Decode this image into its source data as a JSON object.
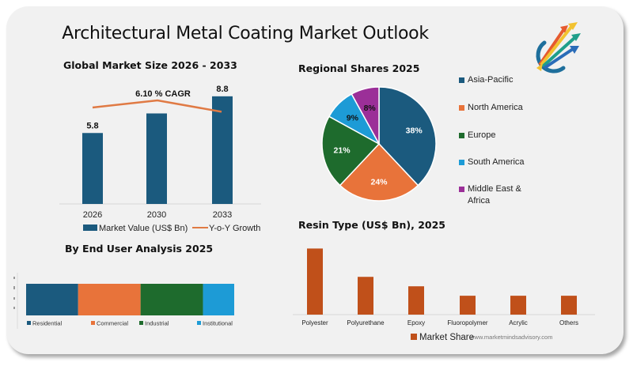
{
  "page": {
    "title": "Architectural Metal Coating Market Outlook",
    "logo_icon": "rising-arrows-logo-icon",
    "watermark": "www.marketmindsadvisory.com"
  },
  "colors": {
    "blue": "#1b5a7e",
    "orange": "#e8733a",
    "green": "#1e6b2d",
    "light_blue": "#1d9bd6",
    "purple": "#9b2f98",
    "resin": "#c0501a",
    "line": "#e07a44"
  },
  "chart_data": [
    {
      "id": "global-market-size",
      "type": "bar",
      "title": "Global Market Size 2026 - 2033",
      "categories": [
        "2026",
        "2030",
        "2033"
      ],
      "series": [
        {
          "name": "Market Value (US$ Bn)",
          "kind": "bar",
          "values": [
            5.8,
            7.4,
            8.8
          ],
          "labels": [
            "5.8",
            "",
            "8.8"
          ]
        },
        {
          "name": "Y-o-Y Growth",
          "kind": "line",
          "values": [
            6.0,
            6.5,
            5.7
          ]
        }
      ],
      "annotation": "6.10 % CAGR",
      "ylim": [
        0,
        9.5
      ],
      "legend": "bottom",
      "grid": false
    },
    {
      "id": "regional-shares",
      "type": "pie",
      "title": "Regional Shares 2025",
      "labels": [
        "Asia-Pacific",
        "North America",
        "Europe",
        "South America",
        "Middle East & Africa"
      ],
      "values": [
        38,
        24,
        21,
        9,
        8
      ],
      "value_labels": [
        "38%",
        "24%",
        "21%",
        "9%",
        "8%"
      ],
      "legend": "right"
    },
    {
      "id": "end-user",
      "type": "bar",
      "stacked": true,
      "orientation": "horizontal",
      "title": "By  End User Analysis 2025",
      "series": [
        {
          "name": "Residential",
          "value": 25
        },
        {
          "name": "Commercial",
          "value": 30
        },
        {
          "name": "Industrial",
          "value": 30
        },
        {
          "name": "Institutional",
          "value": 15
        }
      ],
      "legend": "bottom"
    },
    {
      "id": "resin-type",
      "type": "bar",
      "title": "Resin Type (US$ Bn), 2025",
      "categories": [
        "Polyester",
        "Polyurethane",
        "Epoxy",
        "Fluoropolymer",
        "Acrylic",
        "Others"
      ],
      "series": [
        {
          "name": "Market Share",
          "values": [
            3.5,
            2.0,
            1.5,
            1.0,
            1.0,
            1.0
          ]
        }
      ],
      "ylim": [
        0,
        3.6
      ],
      "legend": "bottom"
    }
  ]
}
